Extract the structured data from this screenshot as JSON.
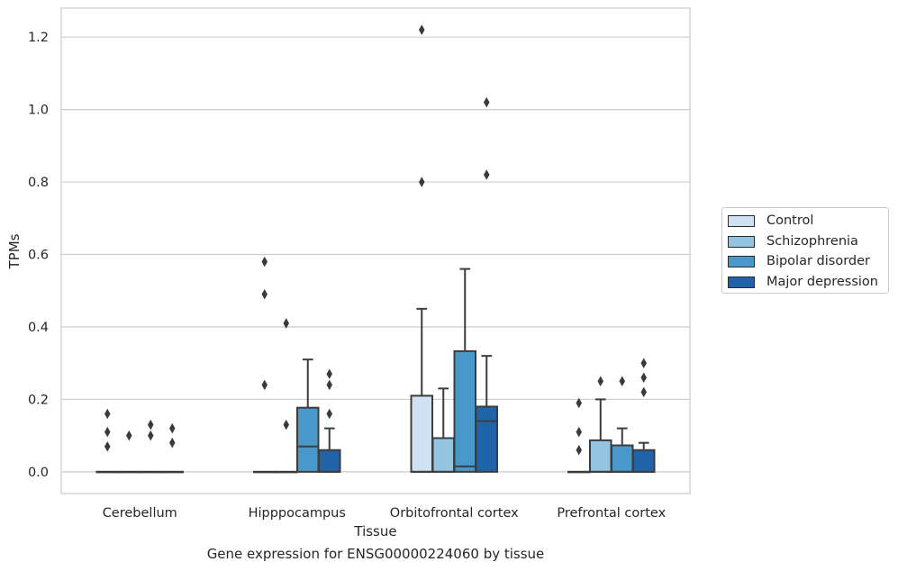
{
  "chart_data": {
    "type": "box",
    "title": "Gene expression for ENSG00000224060 by tissue",
    "xlabel": "Tissue",
    "ylabel": "TPMs",
    "ylim": [
      -0.06,
      1.28
    ],
    "yticks": [
      0.0,
      0.2,
      0.4,
      0.6,
      0.8,
      1.0,
      1.2
    ],
    "ytick_labels": [
      "0.0",
      "0.2",
      "0.4",
      "0.6",
      "0.8",
      "1.0",
      "1.2"
    ],
    "categories": [
      "Cerebellum",
      "Hipppocampus",
      "Orbitofrontal cortex",
      "Prefrontal cortex"
    ],
    "grid": "horizontal",
    "legend_position": "right",
    "series": [
      {
        "name": "Control",
        "color": "#d0e1f2",
        "boxes": [
          {
            "min": 0.0,
            "q1": 0.0,
            "median": 0.0,
            "q3": 0.0,
            "max": 0.0,
            "outliers": [
              0.07,
              0.11,
              0.16
            ]
          },
          {
            "min": 0.0,
            "q1": 0.0,
            "median": 0.0,
            "q3": 0.0,
            "max": 0.0,
            "outliers": [
              0.24,
              0.49,
              0.58
            ]
          },
          {
            "min": 0.0,
            "q1": 0.0,
            "median": 0.0,
            "q3": 0.21,
            "max": 0.45,
            "outliers": [
              0.8,
              1.22
            ]
          },
          {
            "min": 0.0,
            "q1": 0.0,
            "median": 0.0,
            "q3": 0.0,
            "max": 0.0,
            "outliers": [
              0.06,
              0.11,
              0.19
            ]
          }
        ]
      },
      {
        "name": "Schizophrenia",
        "color": "#94c4df",
        "boxes": [
          {
            "min": 0.0,
            "q1": 0.0,
            "median": 0.0,
            "q3": 0.0,
            "max": 0.0,
            "outliers": [
              0.1
            ]
          },
          {
            "min": 0.0,
            "q1": 0.0,
            "median": 0.0,
            "q3": 0.0,
            "max": 0.0,
            "outliers": [
              0.13,
              0.41
            ]
          },
          {
            "min": 0.0,
            "q1": 0.0,
            "median": 0.0,
            "q3": 0.093,
            "max": 0.23,
            "outliers": []
          },
          {
            "min": 0.0,
            "q1": 0.0,
            "median": 0.0,
            "q3": 0.087,
            "max": 0.2,
            "outliers": [
              0.25
            ]
          }
        ]
      },
      {
        "name": "Bipolar disorder",
        "color": "#4a98c9",
        "boxes": [
          {
            "min": 0.0,
            "q1": 0.0,
            "median": 0.0,
            "q3": 0.0,
            "max": 0.0,
            "outliers": [
              0.1,
              0.13
            ]
          },
          {
            "min": 0.0,
            "q1": 0.0,
            "median": 0.07,
            "q3": 0.177,
            "max": 0.31,
            "outliers": []
          },
          {
            "min": 0.0,
            "q1": 0.0,
            "median": 0.015,
            "q3": 0.333,
            "max": 0.56,
            "outliers": []
          },
          {
            "min": 0.0,
            "q1": 0.0,
            "median": 0.0,
            "q3": 0.073,
            "max": 0.12,
            "outliers": [
              0.25
            ]
          }
        ]
      },
      {
        "name": "Major depression",
        "color": "#2163a8",
        "boxes": [
          {
            "min": 0.0,
            "q1": 0.0,
            "median": 0.0,
            "q3": 0.0,
            "max": 0.0,
            "outliers": [
              0.08,
              0.12
            ]
          },
          {
            "min": 0.0,
            "q1": 0.0,
            "median": 0.0,
            "q3": 0.06,
            "max": 0.12,
            "outliers": [
              0.16,
              0.24,
              0.27
            ]
          },
          {
            "min": 0.0,
            "q1": 0.0,
            "median": 0.14,
            "q3": 0.18,
            "max": 0.32,
            "outliers": [
              0.82,
              1.02
            ]
          },
          {
            "min": 0.0,
            "q1": 0.0,
            "median": 0.0,
            "q3": 0.06,
            "max": 0.08,
            "outliers": [
              0.22,
              0.26,
              0.3
            ]
          }
        ]
      }
    ]
  }
}
